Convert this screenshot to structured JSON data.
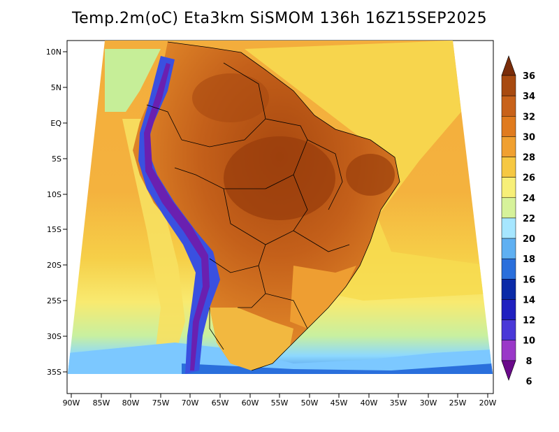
{
  "title": "Temp.2m(oC) Eta3km SiSMOM 136h 16Z15SEP2025",
  "axes": {
    "lat_labels": [
      "10N",
      "5N",
      "EQ",
      "5S",
      "10S",
      "15S",
      "20S",
      "25S",
      "30S",
      "35S"
    ],
    "lon_labels": [
      "90W",
      "85W",
      "80W",
      "75W",
      "70W",
      "65W",
      "60W",
      "55W",
      "50W",
      "45W",
      "40W",
      "35W",
      "30W",
      "25W",
      "20W"
    ]
  },
  "colorbar": {
    "labels": [
      "36",
      "34",
      "32",
      "30",
      "28",
      "26",
      "24",
      "22",
      "20",
      "18",
      "16",
      "14",
      "12",
      "10",
      "8",
      "6"
    ],
    "colors": [
      "#7a2d0a",
      "#a84a10",
      "#c8621a",
      "#e07b1e",
      "#f0a030",
      "#f6c842",
      "#f7ef78",
      "#d6f29a",
      "#a6e6ff",
      "#5fb0f2",
      "#2a6fdc",
      "#0a2aa8",
      "#2020c0",
      "#4a38d8",
      "#9a38c8",
      "#6a0a8a"
    ]
  },
  "map_colors": {
    "ocean_warm": "#f3b340",
    "ocean_mid": "#f7d94e",
    "ocean_cool": "#f9ef7a",
    "ocean_cold": "#a6e6ff",
    "land_hot": "#b85a1a",
    "land_warm": "#d87a28",
    "andes": "#4a30c8",
    "andes_peak": "#7a1aa8"
  }
}
